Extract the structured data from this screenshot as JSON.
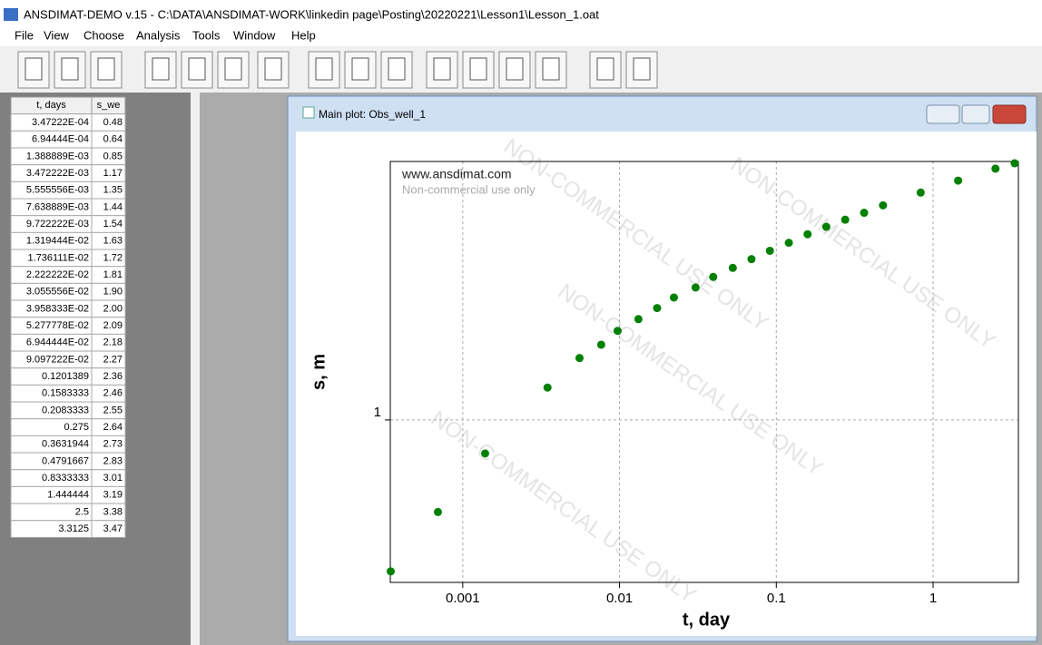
{
  "window_title": "ANSDIMAT-DEMO v.15 - C:\\DATA\\ANSDIMAT-WORK\\linkedin page\\Posting\\20220221\\Lesson1\\Lesson_1.oat",
  "menu": [
    "File",
    "View",
    "Choose",
    "Analysis",
    "Tools",
    "Window",
    "Help"
  ],
  "table": {
    "header": [
      "t, days",
      "s_we"
    ],
    "rows": [
      [
        "3.47222E-04",
        "0.48"
      ],
      [
        "6.94444E-04",
        "0.64"
      ],
      [
        "1.388889E-03",
        "0.85"
      ],
      [
        "3.472222E-03",
        "1.17"
      ],
      [
        "5.555556E-03",
        "1.35"
      ],
      [
        "7.638889E-03",
        "1.44"
      ],
      [
        "9.722222E-03",
        "1.54"
      ],
      [
        "1.319444E-02",
        "1.63"
      ],
      [
        "1.736111E-02",
        "1.72"
      ],
      [
        "2.222222E-02",
        "1.81"
      ],
      [
        "3.055556E-02",
        "1.90"
      ],
      [
        "3.958333E-02",
        "2.00"
      ],
      [
        "5.277778E-02",
        "2.09"
      ],
      [
        "6.944444E-02",
        "2.18"
      ],
      [
        "9.097222E-02",
        "2.27"
      ],
      [
        "0.1201389",
        "2.36"
      ],
      [
        "0.1583333",
        "2.46"
      ],
      [
        "0.2083333",
        "2.55"
      ],
      [
        "0.275",
        "2.64"
      ],
      [
        "0.3631944",
        "2.73"
      ],
      [
        "0.4791667",
        "2.83"
      ],
      [
        "0.8333333",
        "3.01"
      ],
      [
        "1.444444",
        "3.19"
      ],
      [
        "2.5",
        "3.38"
      ],
      [
        "3.3125",
        "3.47"
      ]
    ]
  },
  "plot_window_title": "Main plot: Obs_well_1",
  "chart_data": {
    "type": "scatter",
    "x_label": "t, day",
    "y_label": "s, m",
    "annotations": [
      "www.ansdimat.com",
      "Non-commercial use only"
    ],
    "watermark": "NON-COMMERCIAL USE ONLY",
    "x": [
      0.000347222,
      0.000694444,
      0.001388889,
      0.003472222,
      0.005555556,
      0.007638889,
      0.009722222,
      0.01319444,
      0.01736111,
      0.02222222,
      0.03055556,
      0.03958333,
      0.05277778,
      0.06944444,
      0.09097222,
      0.1201389,
      0.1583333,
      0.2083333,
      0.275,
      0.3631944,
      0.4791667,
      0.8333333,
      1.444444,
      2.5,
      3.3125
    ],
    "values": [
      0.48,
      0.64,
      0.85,
      1.17,
      1.35,
      1.44,
      1.54,
      1.63,
      1.72,
      1.81,
      1.9,
      2.0,
      2.09,
      2.18,
      2.27,
      2.36,
      2.46,
      2.55,
      2.64,
      2.73,
      2.83,
      3.01,
      3.19,
      3.38,
      3.47
    ],
    "color": "#008000",
    "xlim": [
      0.000345,
      3.5
    ],
    "ylim": [
      0.455,
      3.5
    ],
    "xticks": [
      0.001,
      0.01,
      0.1,
      1
    ],
    "yticks": [
      1
    ],
    "x_log": true,
    "y_log": true,
    "grid": true
  }
}
